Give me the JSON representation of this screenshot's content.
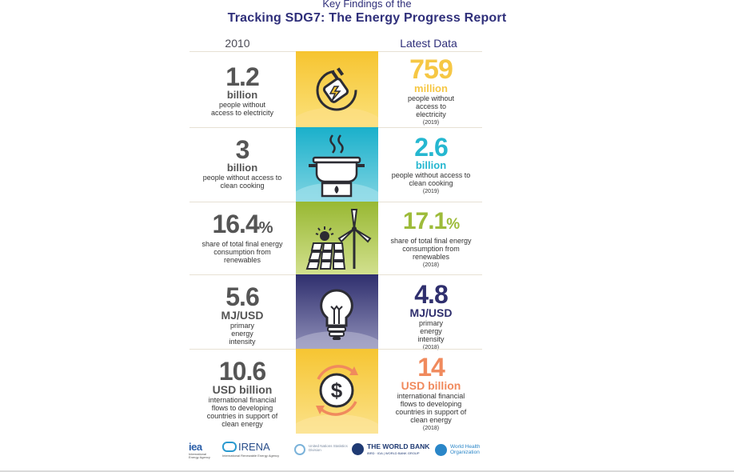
{
  "header": {
    "subtitle": "Key Findings of the",
    "title": "Tracking SDG7: The Energy Progress Report"
  },
  "columns": {
    "left": "2010",
    "right": "Latest Data"
  },
  "rows": [
    {
      "left": {
        "value": "1.2",
        "unit": "billion",
        "desc": "people without access to electricity"
      },
      "right": {
        "value": "759",
        "unit": "million",
        "desc": "people without access to electricity",
        "year": "(2019)"
      },
      "icon": "plug-icon",
      "color": "#f5c42c"
    },
    {
      "left": {
        "value": "3",
        "unit": "billion",
        "desc": "people without access to clean cooking"
      },
      "right": {
        "value": "2.6",
        "unit": "billion",
        "desc": "people without access to clean cooking",
        "year": "(2019)"
      },
      "icon": "cooking-pot-icon",
      "color": "#1fb4cf"
    },
    {
      "left": {
        "value": "16.4",
        "unit": "%",
        "desc": "share of total final energy consumption from renewables"
      },
      "right": {
        "value": "17.1",
        "unit": "%",
        "desc": "share of total final energy consumption from renewables",
        "year": "(2018)"
      },
      "icon": "solar-wind-icon",
      "color": "#9dbb3a"
    },
    {
      "left": {
        "value": "5.6",
        "unit": "MJ/USD",
        "desc": "primary energy intensity"
      },
      "right": {
        "value": "4.8",
        "unit": "MJ/USD",
        "desc": "primary energy intensity",
        "year": "(2018)"
      },
      "icon": "lightbulb-icon",
      "color": "#2f2f6e"
    },
    {
      "left": {
        "value": "10.6",
        "unit": "USD billion",
        "desc": "international financial flows to developing countries in support of clean energy"
      },
      "right": {
        "value": "14",
        "unit": "USD billion",
        "desc": "international financial flows to developing countries in support of clean energy",
        "year": "(2018)"
      },
      "icon": "dollar-cycle-icon",
      "color": "#f08a5d"
    }
  ],
  "logos": {
    "iea": "iea",
    "iea_sub": "International Energy Agency",
    "irena": "IRENA",
    "irena_sub": "International Renewable Energy Agency",
    "un": "United Nations Statistics Division",
    "wb": "THE WORLD BANK",
    "wb_sub": "IBRD · IDA | WORLD BANK GROUP",
    "who": "World Health Organization"
  }
}
